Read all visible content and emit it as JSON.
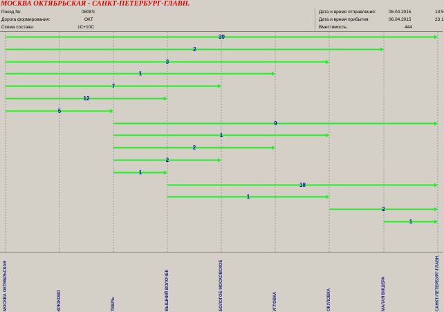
{
  "title": "МОСКВА ОКТЯБРЬСКАЯ - САНКТ-ПЕТЕРБУРГ-ГЛАВН.",
  "info": {
    "train_label": "Поезд №:",
    "train_value": "0808Ч",
    "road_label": "Дорога формирования:",
    "road_value": "ОКТ",
    "scheme_label": "Схема состава:",
    "scheme_value": "1С+10С",
    "departure_label": "Дата и время отправления:",
    "departure_date": "06.04.2015",
    "departure_time": "14:5",
    "arrival_label": "Дата и время прибытия:",
    "arrival_date": "06.04.2015",
    "arrival_time": "23 1",
    "capacity_label": "Вместимость:",
    "capacity_value": "444"
  },
  "stations": [
    "МОСКВА ОКТЯБРЬСКАЯ",
    "КРЮКОВО",
    "ТВЕРЬ",
    "ВЫШНИЙ ВОЛОЧЕК",
    "БОЛОГОЕ МОСКОВСКОЕ",
    "УГЛОВКА",
    "ОКУЛОВКА",
    "МАЛАЯ ВИШЕРА",
    "САНКТ-ПЕТЕРБУРГ-ГЛАВН."
  ],
  "chart_data": {
    "type": "bar",
    "title": "МОСКВА ОКТЯБРЬСКАЯ - САНКТ-ПЕТЕРБУРГ-ГЛАВН.",
    "description_of_axes": "x = stations along route (index 0..8), each bar spans from origin station index to destination station index; label = number of passengers",
    "segments": [
      {
        "from": 0,
        "to": 8,
        "value": 39
      },
      {
        "from": 0,
        "to": 7,
        "value": 2
      },
      {
        "from": 0,
        "to": 6,
        "value": 3
      },
      {
        "from": 0,
        "to": 5,
        "value": 1
      },
      {
        "from": 0,
        "to": 4,
        "value": 7
      },
      {
        "from": 0,
        "to": 3,
        "value": 12
      },
      {
        "from": 0,
        "to": 2,
        "value": 5
      },
      {
        "from": 2,
        "to": 8,
        "value": 9
      },
      {
        "from": 2,
        "to": 6,
        "value": 1
      },
      {
        "from": 2,
        "to": 5,
        "value": 2
      },
      {
        "from": 2,
        "to": 4,
        "value": 2
      },
      {
        "from": 2,
        "to": 3,
        "value": 1
      },
      {
        "from": 3,
        "to": 8,
        "value": 18
      },
      {
        "from": 3,
        "to": 6,
        "value": 1
      },
      {
        "from": 6,
        "to": 8,
        "value": 2
      },
      {
        "from": 7,
        "to": 8,
        "value": 1
      }
    ],
    "colors": {
      "bar": "#22ee22",
      "label": "#1010aa",
      "grid": "#9a9a9a"
    }
  }
}
